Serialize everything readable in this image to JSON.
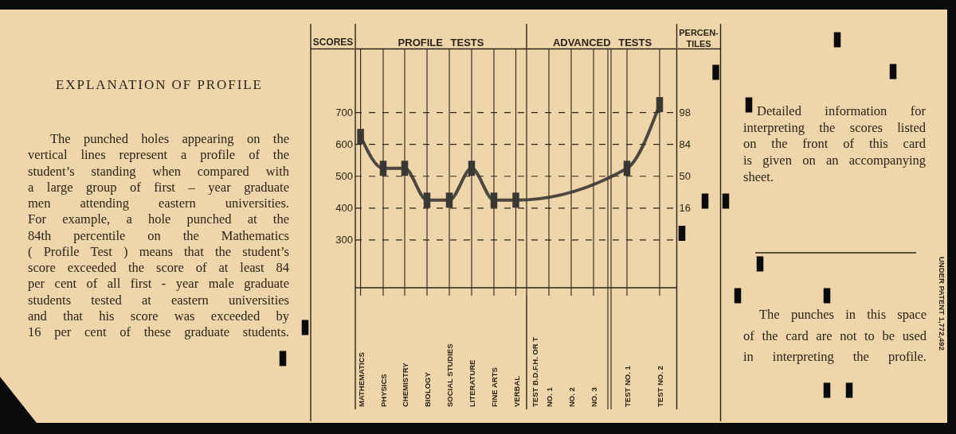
{
  "chart_data": {
    "type": "line",
    "title": "EXPLANATION OF PROFILE",
    "ylabel": "SCORES",
    "categories": [
      "MATHEMATICS",
      "PHYSICS",
      "CHEMISTRY",
      "BIOLOGY",
      "SOCIAL STUDIES",
      "LITERATURE",
      "FINE ARTS",
      "VERBAL",
      "TEST B.D.F.H. OR T\nNO. 1",
      "NO. 2",
      "NO. 3",
      "TEST NO. 1",
      "TEST NO. 2"
    ],
    "series": [
      {
        "color": "#3a3835",
        "values": [
          625,
          525,
          525,
          425,
          425,
          525,
          425,
          425,
          null,
          null,
          null,
          525,
          725
        ]
      }
    ],
    "ylim": [
      150,
      900
    ],
    "yticks": [
      300,
      400,
      500,
      600,
      700
    ],
    "grid": true,
    "marker": "square",
    "line_style": "solid",
    "annotations": [
      "PROFILE TESTS",
      "ADVANCED TESTS",
      "PERCEN-\nTILES",
      "98",
      "84",
      "50",
      "16",
      "The punched holes appearing on the\nvertical lines represent a profile of the\nstudent’s standing when compared with\na large group of first – year graduate\nmen attending eastern universities.\nFor example, a hole punched at the\n84th percentile on the Mathematics\n( Profile Test ) means that the student’s\nscore exceeded the score of at least 84\nper cent of all first - year male graduate\nstudents tested at eastern universities\nand that his score was exceeded by\n16 per cent of these graduate students.",
      "Detailed information for\ninterpreting the scores listed\non the front of this card\nis given on an accompanying\nsheet.",
      "The punches in this space\nof the card are not to be used\nin interpreting the profile.",
      "UNDER PATENT 1,772,492"
    ]
  }
}
